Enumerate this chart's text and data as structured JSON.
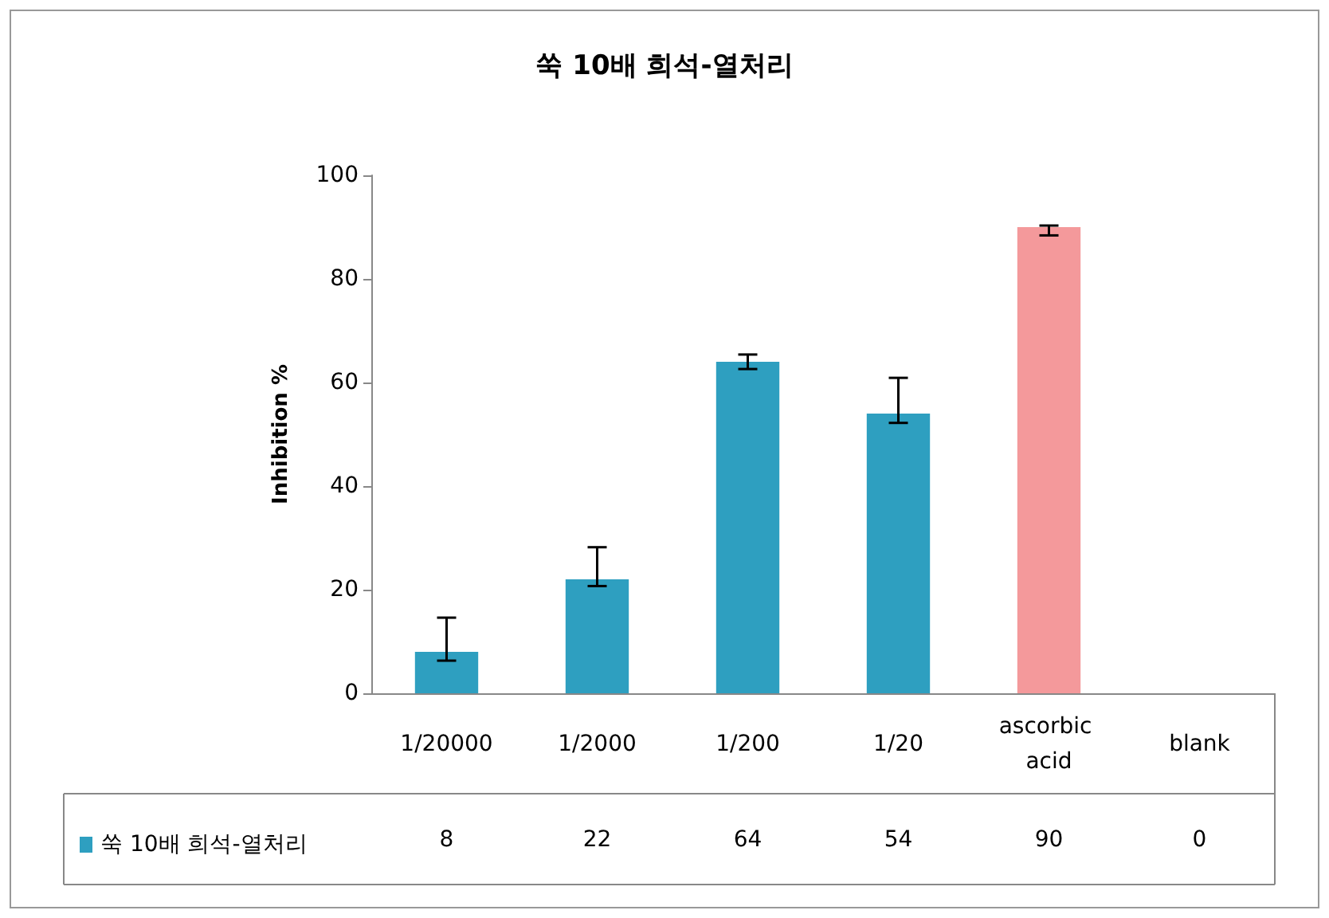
{
  "chart_data": {
    "type": "bar",
    "title": "쑥 10배 희석-열처리",
    "ylabel": "Inhibition %",
    "categories": [
      "1/20000",
      "1/2000",
      "1/200",
      "1/20",
      "ascorbic acid",
      "blank"
    ],
    "series": [
      {
        "name": "쑥 10배 희석-열처리",
        "color": "#2e9fc0",
        "colors": [
          "#2e9fc0",
          "#2e9fc0",
          "#2e9fc0",
          "#2e9fc0",
          "#f4999b",
          "#2e9fc0"
        ],
        "values": [
          8,
          22,
          64,
          54,
          90,
          0
        ],
        "errors": [
          [
            6.3,
            14.6
          ],
          [
            20.7,
            28.2
          ],
          [
            62.6,
            65.4
          ],
          [
            52.2,
            60.9
          ],
          [
            88.4,
            90.3
          ],
          null
        ]
      }
    ],
    "ylim": [
      0,
      100
    ],
    "yticks": [
      0,
      20,
      40,
      60,
      80,
      100
    ],
    "grid": false,
    "legend": "bottom left",
    "data_labels": true
  }
}
